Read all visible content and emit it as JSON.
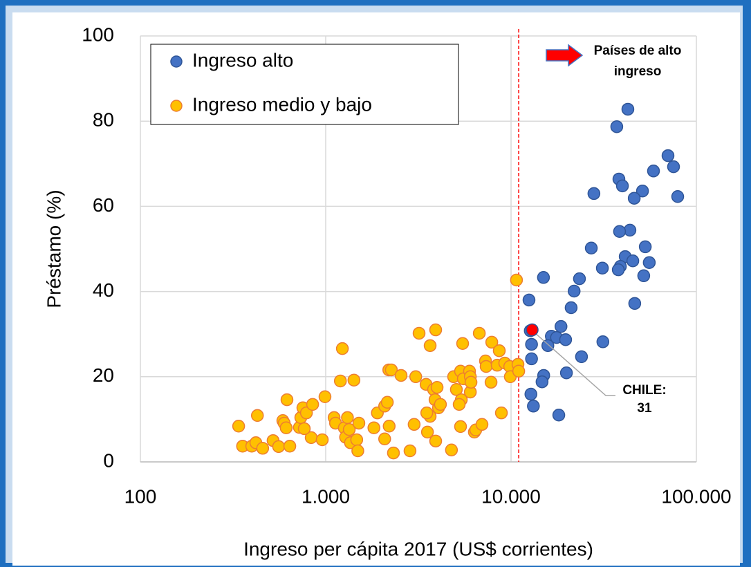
{
  "chart_data": {
    "type": "scatter",
    "x_label": "Ingreso per cápita 2017 (US$ corrientes)",
    "y_label": "Préstamo (%)",
    "xlim": [
      100,
      100000
    ],
    "ylim": [
      0,
      100
    ],
    "x_log": true,
    "grid": true,
    "legend": "top-left",
    "xticks": [
      100,
      {
        "value": 1000,
        "label": "1.000"
      },
      {
        "value": 10000,
        "label": "10.000"
      },
      {
        "value": 100000,
        "label": "100.000"
      }
    ],
    "yticks": [
      0,
      20,
      40,
      60,
      80,
      100
    ],
    "series": [
      {
        "name": "Ingreso alto",
        "color": "#4472c4",
        "edge": "#2f5597",
        "x": [
          42700,
          37200,
          70300,
          75300,
          58700,
          38200,
          39900,
          51200,
          28000,
          79300,
          46200,
          43800,
          38500,
          53000,
          27100,
          41300,
          45400,
          55700,
          38900,
          31100,
          37900,
          52000,
          14960,
          23400,
          21900,
          46500,
          21100,
          12500,
          18600,
          12700,
          16500,
          17600,
          19700,
          31300,
          12900,
          15800,
          24000,
          12900,
          15000,
          19900,
          14700,
          12800,
          13200,
          18100
        ],
        "values": [
          82.8,
          78.7,
          71.9,
          69.3,
          68.3,
          66.4,
          64.8,
          63.6,
          63.0,
          62.3,
          61.9,
          54.4,
          54.1,
          50.5,
          50.2,
          48.2,
          47.2,
          46.8,
          45.9,
          45.5,
          45.1,
          43.7,
          43.3,
          43.0,
          40.1,
          37.2,
          36.2,
          38.0,
          31.8,
          30.8,
          29.5,
          29.2,
          28.7,
          28.2,
          27.6,
          27.3,
          24.7,
          24.2,
          20.3,
          20.9,
          18.8,
          15.9,
          13.1,
          11.0
        ]
      },
      {
        "name": "Ingreso medio y bajo",
        "color": "#ffc000",
        "edge": "#ed7d31",
        "x": [
          339,
          428,
          356,
          399,
          420,
          457,
          520,
          557,
          587,
          597,
          618,
          640,
          612,
          721,
          734,
          753,
          787,
          835,
          850,
          766,
          958,
          991,
          1110,
          1130,
          1200,
          1230,
          1260,
          1310,
          1280,
          1340,
          1360,
          1420,
          1470,
          1490,
          1510,
          1820,
          1900,
          2080,
          2150,
          2080,
          2190,
          2260,
          2200,
          2320,
          2550,
          3060,
          3000,
          3190,
          3480,
          3660,
          3820,
          3920,
          3990,
          3890,
          4060,
          4160,
          3660,
          3510,
          3540,
          2850,
          3920,
          4770,
          4900,
          5070,
          5340,
          5390,
          5480,
          5530,
          5250,
          5340,
          5970,
          6030,
          6030,
          6080,
          6340,
          6450,
          6740,
          6970,
          7280,
          7340,
          7800,
          7870,
          8420,
          8640,
          8870,
          9250,
          9840,
          9910,
          10700,
          10900,
          11000
        ],
        "values": [
          8.4,
          10.9,
          3.7,
          3.7,
          4.5,
          3.2,
          5.0,
          3.6,
          9.7,
          9.1,
          14.6,
          3.7,
          8.0,
          8.1,
          10.4,
          12.7,
          11.5,
          5.7,
          13.5,
          7.8,
          5.2,
          15.3,
          10.4,
          9.1,
          19.0,
          26.6,
          8.0,
          10.4,
          5.8,
          7.6,
          4.5,
          19.2,
          5.2,
          2.6,
          9.1,
          8.0,
          11.5,
          13.1,
          14.0,
          5.4,
          21.6,
          21.6,
          8.4,
          2.1,
          20.3,
          20.0,
          8.8,
          30.2,
          18.2,
          27.3,
          17.0,
          31.0,
          17.5,
          14.6,
          12.7,
          13.5,
          10.7,
          11.5,
          7.0,
          2.6,
          4.9,
          2.8,
          20.0,
          17.0,
          21.3,
          14.6,
          27.8,
          19.5,
          13.5,
          8.3,
          21.3,
          20.0,
          16.4,
          18.7,
          7.0,
          7.5,
          30.2,
          8.8,
          23.7,
          22.4,
          18.7,
          28.1,
          22.7,
          26.1,
          11.5,
          23.2,
          22.4,
          20.0,
          42.7,
          22.9,
          21.3
        ]
      }
    ],
    "highlight": {
      "label": "CHILE:",
      "x": 13000,
      "y": 31,
      "color": "#ff0000"
    },
    "reference_line": {
      "x": 11000,
      "color": "#ff0000"
    },
    "annotation": {
      "lines": [
        "Países de alto",
        "ingreso"
      ],
      "color": "#4472c4"
    }
  }
}
